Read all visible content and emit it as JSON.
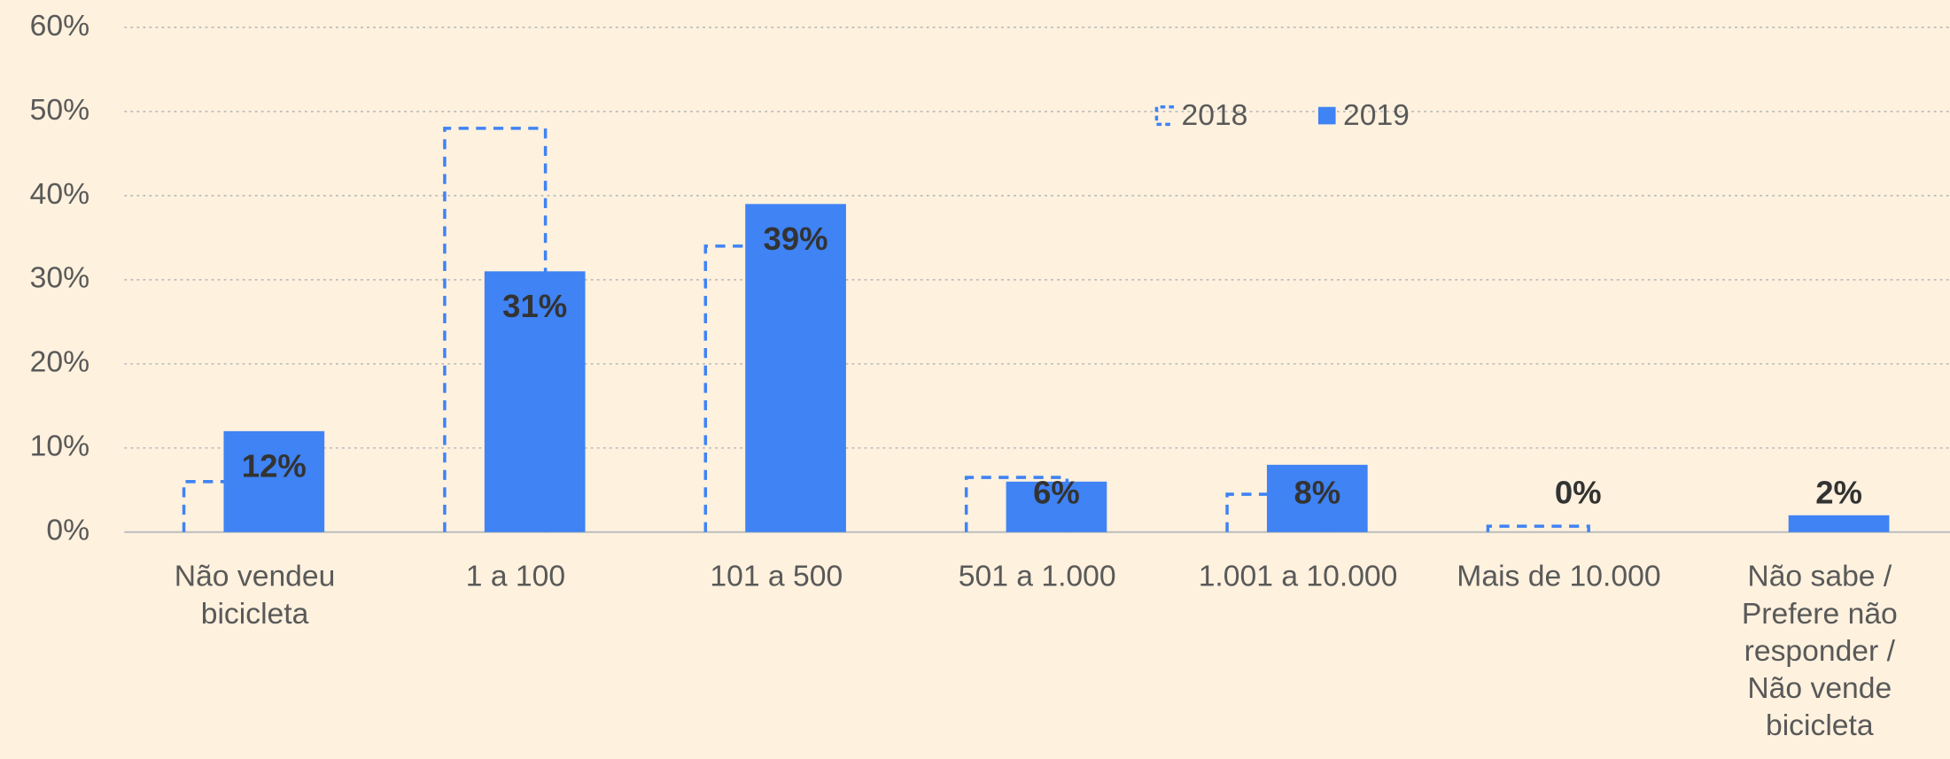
{
  "chart_data": {
    "type": "bar",
    "categories": [
      "Não vendeu\nbicicleta",
      "1 a 100",
      "101 a 500",
      "501 a 1.000",
      "1.001 a 10.000",
      "Mais de 10.000",
      "Não sabe /\nPrefere não\nresponder /\nNão vende\nbicicleta"
    ],
    "series": [
      {
        "name": "2018",
        "color": "#3f83f4",
        "style": "dashed",
        "values": [
          6,
          48,
          34,
          6.5,
          4.5,
          0.7,
          0
        ]
      },
      {
        "name": "2019",
        "color": "#3f83f4",
        "values": [
          12,
          31,
          39,
          6,
          8,
          0,
          2
        ],
        "value_labels": [
          "12%",
          "31%",
          "39%",
          "6%",
          "8%",
          "0%",
          "2%"
        ]
      }
    ],
    "ylim": [
      0,
      60
    ],
    "yticks": [
      {
        "value": 0,
        "label": "0%"
      },
      {
        "value": 10,
        "label": "10%"
      },
      {
        "value": 20,
        "label": "20%"
      },
      {
        "value": 30,
        "label": "30%"
      },
      {
        "value": 40,
        "label": "40%"
      },
      {
        "value": 50,
        "label": "50%"
      },
      {
        "value": 60,
        "label": "60%"
      }
    ],
    "grid": true
  }
}
